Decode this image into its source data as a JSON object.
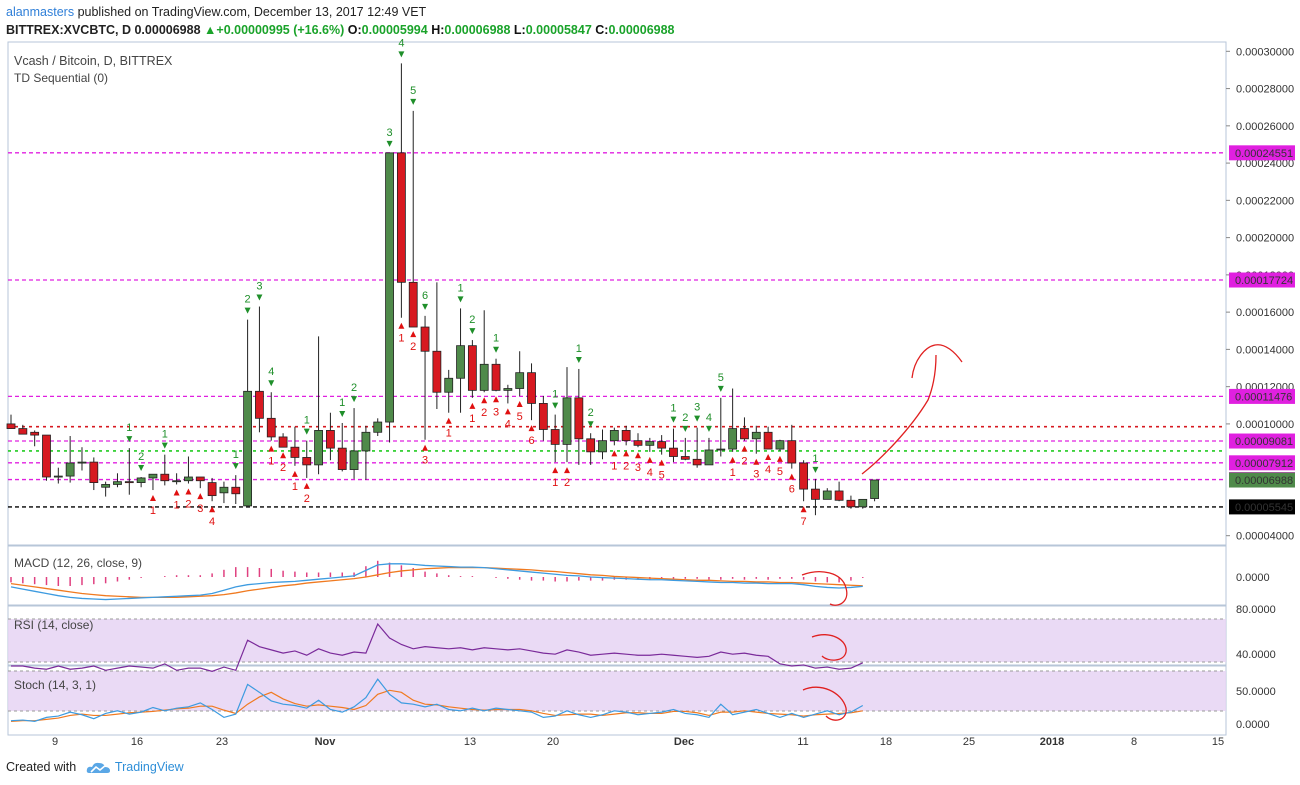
{
  "header": {
    "user": "alanmasters",
    "published": "published on TradingView.com, December 13, 2017 12:49 VET"
  },
  "ohlc_line": {
    "symbol": "BITTREX:XVCBTC, D",
    "price": "0.00006988",
    "change_arrow": "▲",
    "change": "+0.00000995 (+16.6%)",
    "o_label": "O:",
    "o": "0.00005994",
    "h_label": "H:",
    "h": "0.00006988",
    "l_label": "L:",
    "l": "0.00005847",
    "c_label": "C:",
    "c": "0.00006988"
  },
  "legend": {
    "title": "Vcash / Bitcoin, D, BITTREX",
    "td": "TD Sequential (0)",
    "macd": "MACD (12, 26, close, 9)",
    "rsi": "RSI (14, close)",
    "stoch": "Stoch (14, 3, 1)"
  },
  "footer": {
    "created_with": "Created with",
    "brand": "TradingView"
  },
  "colors": {
    "up": "#4f8a4a",
    "down": "#d71920",
    "grid": "#dfe8f3",
    "magenta": "#e020e0",
    "green_dash": "#22cc22",
    "red_dash": "#d71920",
    "td_green": "#1f8f2a",
    "td_red": "#e01010",
    "macd_blue": "#3d9be0",
    "macd_orange": "#f07a20",
    "rsi_line": "#7a2a9a",
    "stoch_blue": "#3d9be0",
    "stoch_orange": "#f07a20",
    "annot": "#e02020",
    "panel_fill": "#e6d4f3"
  },
  "chart_data": {
    "type": "candlestick",
    "title": "Vcash / Bitcoin, D, BITTREX",
    "y_axis": {
      "ticks": [
        "0.00030000",
        "0.00028000",
        "0.00026000",
        "0.00024000",
        "0.00022000",
        "0.00020000",
        "0.00018000",
        "0.00016000",
        "0.00014000",
        "0.00012000",
        "0.00010000",
        "0.00004000"
      ],
      "ylim": [
        3.5e-05,
        0.000305
      ]
    },
    "x_axis": {
      "ticks": [
        "9",
        "16",
        "23",
        "Nov",
        "13",
        "20",
        "Dec",
        "11",
        "18",
        "25",
        "2018",
        "8",
        "15"
      ]
    },
    "price_labels": [
      {
        "value": 0.00024551,
        "text": "0.00024551",
        "color": "#e020e0"
      },
      {
        "value": 0.00017724,
        "text": "0.00017724",
        "color": "#e020e0"
      },
      {
        "value": 0.00011476,
        "text": "0.00011476",
        "color": "#e020e0"
      },
      {
        "value": 9.081e-05,
        "text": "0.00009081",
        "color": "#e020e0"
      },
      {
        "value": 7.912e-05,
        "text": "0.00007912",
        "color": "#e020e0"
      },
      {
        "value": 7.013e-05,
        "text": "0.00007013",
        "color": "#e020e0"
      },
      {
        "value": 6.988e-05,
        "text": "0.00006988",
        "color": "#4f8a4a"
      },
      {
        "value": 5.545e-05,
        "text": "0.00005545",
        "color": "#000000"
      }
    ],
    "h_lines": [
      {
        "value": 0.00024551,
        "style": "magenta"
      },
      {
        "value": 0.00017724,
        "style": "magenta"
      },
      {
        "value": 0.00011476,
        "style": "magenta"
      },
      {
        "value": 9.081e-05,
        "style": "magenta"
      },
      {
        "value": 7.912e-05,
        "style": "magenta"
      },
      {
        "value": 7.013e-05,
        "style": "magenta"
      },
      {
        "value": 9.85e-05,
        "style": "red_dash"
      },
      {
        "value": 8.55e-05,
        "style": "green_dash"
      },
      {
        "value": 5.545e-05,
        "style": "black_dash"
      }
    ],
    "candles": [
      {
        "o": 0.0001,
        "h": 0.000105,
        "l": 9.75e-05,
        "c": 9.75e-05
      },
      {
        "o": 9.75e-05,
        "h": 9.95e-05,
        "l": 9.55e-05,
        "c": 9.45e-05
      },
      {
        "o": 9.55e-05,
        "h": 9.65e-05,
        "l": 8.8e-05,
        "c": 9.4e-05
      },
      {
        "o": 9.4e-05,
        "h": 9.4e-05,
        "l": 6.95e-05,
        "c": 7.15e-05
      },
      {
        "o": 7.15e-05,
        "h": 7.65e-05,
        "l": 6.8e-05,
        "c": 7.2e-05
      },
      {
        "o": 7.2e-05,
        "h": 9.35e-05,
        "l": 6.85e-05,
        "c": 7.9e-05
      },
      {
        "o": 7.9e-05,
        "h": 8.75e-05,
        "l": 7.5e-05,
        "c": 7.95e-05
      },
      {
        "o": 7.95e-05,
        "h": 8.2e-05,
        "l": 6.45e-05,
        "c": 6.85e-05
      },
      {
        "o": 6.6e-05,
        "h": 6.9e-05,
        "l": 6.1e-05,
        "c": 6.75e-05
      },
      {
        "o": 6.75e-05,
        "h": 7.35e-05,
        "l": 6.6e-05,
        "c": 6.9e-05
      },
      {
        "o": 6.9e-05,
        "h": 8.7e-05,
        "l": 6.2e-05,
        "c": 6.85e-05
      },
      {
        "o": 6.85e-05,
        "h": 7.15e-05,
        "l": 6.6e-05,
        "c": 7.1e-05
      },
      {
        "o": 7.1e-05,
        "h": 7.25e-05,
        "l": 6.45e-05,
        "c": 7.3e-05
      },
      {
        "o": 7.3e-05,
        "h": 8.35e-05,
        "l": 6.7e-05,
        "c": 6.95e-05
      },
      {
        "o": 6.95e-05,
        "h": 7.35e-05,
        "l": 6.75e-05,
        "c": 6.95e-05
      },
      {
        "o": 6.95e-05,
        "h": 8.25e-05,
        "l": 6.8e-05,
        "c": 7.15e-05
      },
      {
        "o": 7.15e-05,
        "h": 7.15e-05,
        "l": 6.55e-05,
        "c": 6.95e-05
      },
      {
        "o": 6.85e-05,
        "h": 7.1e-05,
        "l": 5.85e-05,
        "c": 6.15e-05
      },
      {
        "o": 6.3e-05,
        "h": 6.9e-05,
        "l": 5.75e-05,
        "c": 6.6e-05
      },
      {
        "o": 6.6e-05,
        "h": 7.25e-05,
        "l": 5.7e-05,
        "c": 6.25e-05
      },
      {
        "o": 5.6e-05,
        "h": 0.000156,
        "l": 5.65e-05,
        "c": 0.0001175
      },
      {
        "o": 0.0001175,
        "h": 0.000163,
        "l": 9.55e-05,
        "c": 0.000103
      },
      {
        "o": 0.000103,
        "h": 0.000117,
        "l": 9.1e-05,
        "c": 9.3e-05
      },
      {
        "o": 9.3e-05,
        "h": 9.5e-05,
        "l": 8.75e-05,
        "c": 8.75e-05
      },
      {
        "o": 8.75e-05,
        "h": 9.85e-05,
        "l": 7.75e-05,
        "c": 8.2e-05
      },
      {
        "o": 8.2e-05,
        "h": 9.1e-05,
        "l": 7.1e-05,
        "c": 7.8e-05
      },
      {
        "o": 7.8e-05,
        "h": 0.000147,
        "l": 7.3e-05,
        "c": 9.65e-05
      },
      {
        "o": 9.65e-05,
        "h": 0.000106,
        "l": 8.05e-05,
        "c": 8.7e-05
      },
      {
        "o": 8.7e-05,
        "h": 0.0001005,
        "l": 7.45e-05,
        "c": 7.55e-05
      },
      {
        "o": 7.55e-05,
        "h": 0.0001085,
        "l": 7.05e-05,
        "c": 8.55e-05
      },
      {
        "o": 8.55e-05,
        "h": 9.9e-05,
        "l": 7e-05,
        "c": 9.55e-05
      },
      {
        "o": 9.55e-05,
        "h": 0.000103,
        "l": 9.35e-05,
        "c": 0.000101
      },
      {
        "o": 0.000101,
        "h": 0.0002455,
        "l": 9e-05,
        "c": 0.0002455
      },
      {
        "o": 0.0002455,
        "h": 0.0002935,
        "l": 0.000157,
        "c": 0.000176
      },
      {
        "o": 0.000176,
        "h": 0.000268,
        "l": 0.0001525,
        "c": 0.000152
      },
      {
        "o": 0.000152,
        "h": 0.000158,
        "l": 9.15e-05,
        "c": 0.000139
      },
      {
        "o": 0.000139,
        "h": 0.000176,
        "l": 0.000108,
        "c": 0.000117
      },
      {
        "o": 0.000117,
        "h": 0.000129,
        "l": 0.000106,
        "c": 0.0001245
      },
      {
        "o": 0.0001245,
        "h": 0.000162,
        "l": 0.000106,
        "c": 0.000142
      },
      {
        "o": 0.000142,
        "h": 0.000145,
        "l": 0.000114,
        "c": 0.000118
      },
      {
        "o": 0.000118,
        "h": 0.000161,
        "l": 0.000117,
        "c": 0.000132
      },
      {
        "o": 0.000132,
        "h": 0.000135,
        "l": 0.0001175,
        "c": 0.000118
      },
      {
        "o": 0.000118,
        "h": 0.000121,
        "l": 0.000111,
        "c": 0.000119
      },
      {
        "o": 0.000119,
        "h": 0.000139,
        "l": 0.000115,
        "c": 0.0001275
      },
      {
        "o": 0.0001275,
        "h": 0.0001325,
        "l": 0.000102,
        "c": 0.000111
      },
      {
        "o": 0.000111,
        "h": 0.000115,
        "l": 9.1e-05,
        "c": 9.7e-05
      },
      {
        "o": 9.7e-05,
        "h": 0.000105,
        "l": 7.95e-05,
        "c": 8.9e-05
      },
      {
        "o": 8.9e-05,
        "h": 0.0001305,
        "l": 7.95e-05,
        "c": 0.000114
      },
      {
        "o": 0.000114,
        "h": 0.0001295,
        "l": 7.8e-05,
        "c": 9.2e-05
      },
      {
        "o": 9.2e-05,
        "h": 9.5e-05,
        "l": 7.8e-05,
        "c": 8.5e-05
      },
      {
        "o": 8.5e-05,
        "h": 9.7e-05,
        "l": 8.1e-05,
        "c": 9.1e-05
      },
      {
        "o": 9.1e-05,
        "h": 9.8e-05,
        "l": 8.85e-05,
        "c": 9.65e-05
      },
      {
        "o": 9.65e-05,
        "h": 9.9e-05,
        "l": 8.85e-05,
        "c": 9.1e-05
      },
      {
        "o": 9.1e-05,
        "h": 9.5e-05,
        "l": 8.75e-05,
        "c": 8.85e-05
      },
      {
        "o": 8.85e-05,
        "h": 9.25e-05,
        "l": 8.5e-05,
        "c": 9.05e-05
      },
      {
        "o": 9.05e-05,
        "h": 9.4e-05,
        "l": 8.35e-05,
        "c": 8.7e-05
      },
      {
        "o": 8.7e-05,
        "h": 9.75e-05,
        "l": 7.95e-05,
        "c": 8.25e-05
      },
      {
        "o": 8.25e-05,
        "h": 9.25e-05,
        "l": 8.05e-05,
        "c": 8.1e-05
      },
      {
        "o": 8.1e-05,
        "h": 9.8e-05,
        "l": 7.65e-05,
        "c": 7.8e-05
      },
      {
        "o": 7.8e-05,
        "h": 9.25e-05,
        "l": 7.85e-05,
        "c": 8.6e-05
      },
      {
        "o": 8.6e-05,
        "h": 0.000114,
        "l": 8.25e-05,
        "c": 8.65e-05
      },
      {
        "o": 8.65e-05,
        "h": 0.000119,
        "l": 8.5e-05,
        "c": 9.75e-05
      },
      {
        "o": 9.75e-05,
        "h": 0.0001035,
        "l": 9.1e-05,
        "c": 9.2e-05
      },
      {
        "o": 9.2e-05,
        "h": 9.9e-05,
        "l": 8.4e-05,
        "c": 9.55e-05
      },
      {
        "o": 9.55e-05,
        "h": 9.85e-05,
        "l": 8.65e-05,
        "c": 8.65e-05
      },
      {
        "o": 8.65e-05,
        "h": 9.15e-05,
        "l": 8.55e-05,
        "c": 9.1e-05
      },
      {
        "o": 9.1e-05,
        "h": 9.95e-05,
        "l": 7.6e-05,
        "c": 7.9e-05
      },
      {
        "o": 7.9e-05,
        "h": 8.05e-05,
        "l": 5.85e-05,
        "c": 6.5e-05
      },
      {
        "o": 6.5e-05,
        "h": 7.05e-05,
        "l": 5.1e-05,
        "c": 5.95e-05
      },
      {
        "o": 5.95e-05,
        "h": 6.55e-05,
        "l": 5.95e-05,
        "c": 6.4e-05
      },
      {
        "o": 6.4e-05,
        "h": 6.9e-05,
        "l": 5.85e-05,
        "c": 5.9e-05
      },
      {
        "o": 5.9e-05,
        "h": 6.15e-05,
        "l": 5.45e-05,
        "c": 5.55e-05
      },
      {
        "o": 5.55e-05,
        "h": 5.75e-05,
        "l": 5.45e-05,
        "c": 5.95e-05
      },
      {
        "o": 5.994e-05,
        "h": 6.988e-05,
        "l": 5.847e-05,
        "c": 6.988e-05
      }
    ],
    "td_green": [
      {
        "i": 10,
        "n": "1"
      },
      {
        "i": 11,
        "n": "2"
      },
      {
        "i": 13,
        "n": "1"
      },
      {
        "i": 19,
        "n": "1"
      },
      {
        "i": 20,
        "n": "2"
      },
      {
        "i": 21,
        "n": "3"
      },
      {
        "i": 22,
        "n": "4"
      },
      {
        "i": 25,
        "n": "1"
      },
      {
        "i": 28,
        "n": "1"
      },
      {
        "i": 29,
        "n": "2"
      },
      {
        "i": 32,
        "n": "3"
      },
      {
        "i": 33,
        "n": "4"
      },
      {
        "i": 34,
        "n": "5"
      },
      {
        "i": 35,
        "n": "6"
      },
      {
        "i": 38,
        "n": "1"
      },
      {
        "i": 39,
        "n": "2"
      },
      {
        "i": 41,
        "n": "1"
      },
      {
        "i": 46,
        "n": "1"
      },
      {
        "i": 48,
        "n": "1"
      },
      {
        "i": 49,
        "n": "2"
      },
      {
        "i": 56,
        "n": "1"
      },
      {
        "i": 57,
        "n": "2"
      },
      {
        "i": 58,
        "n": "3"
      },
      {
        "i": 59,
        "n": "4"
      },
      {
        "i": 60,
        "n": "5"
      },
      {
        "i": 68,
        "n": "1"
      }
    ],
    "td_red": [
      {
        "i": 12,
        "n": "1"
      },
      {
        "i": 14,
        "n": "1"
      },
      {
        "i": 15,
        "n": "2"
      },
      {
        "i": 16,
        "n": "3"
      },
      {
        "i": 17,
        "n": "4"
      },
      {
        "i": 22,
        "n": "1"
      },
      {
        "i": 23,
        "n": "2"
      },
      {
        "i": 24,
        "n": "1"
      },
      {
        "i": 25,
        "n": "2"
      },
      {
        "i": 33,
        "n": "1"
      },
      {
        "i": 34,
        "n": "2"
      },
      {
        "i": 35,
        "n": "3"
      },
      {
        "i": 37,
        "n": "1"
      },
      {
        "i": 39,
        "n": "1"
      },
      {
        "i": 40,
        "n": "2"
      },
      {
        "i": 41,
        "n": "3"
      },
      {
        "i": 42,
        "n": "4"
      },
      {
        "i": 43,
        "n": "5"
      },
      {
        "i": 44,
        "n": "6"
      },
      {
        "i": 46,
        "n": "1"
      },
      {
        "i": 47,
        "n": "2"
      },
      {
        "i": 51,
        "n": "1"
      },
      {
        "i": 52,
        "n": "2"
      },
      {
        "i": 53,
        "n": "3"
      },
      {
        "i": 54,
        "n": "4"
      },
      {
        "i": 55,
        "n": "5"
      },
      {
        "i": 61,
        "n": "1"
      },
      {
        "i": 62,
        "n": "2"
      },
      {
        "i": 63,
        "n": "3"
      },
      {
        "i": 64,
        "n": "4"
      },
      {
        "i": 65,
        "n": "5"
      },
      {
        "i": 66,
        "n": "6"
      },
      {
        "i": 67,
        "n": "7"
      }
    ],
    "macd": {
      "y_ticks": [
        "0.0000"
      ],
      "macd_line": [
        -18,
        -22,
        -26,
        -30,
        -34,
        -37,
        -39,
        -40,
        -41,
        -40,
        -39,
        -38,
        -37,
        -36,
        -35,
        -34,
        -33,
        -30,
        -24,
        -18,
        -14,
        -12,
        -10,
        -9,
        -8,
        -6,
        -4,
        -2,
        0,
        2,
        12,
        22,
        24,
        24,
        23,
        21,
        20,
        19,
        18,
        18,
        17,
        15,
        13,
        11,
        9,
        7,
        5,
        3,
        2,
        0,
        -1,
        -2,
        -3,
        -4,
        -5,
        -5,
        -6,
        -7,
        -8,
        -9,
        -10,
        -10,
        -11,
        -11,
        -12,
        -12,
        -12,
        -14,
        -17,
        -19,
        -20,
        -19,
        -17
      ],
      "signal_line": [
        -12,
        -15,
        -18,
        -21,
        -24,
        -27,
        -30,
        -32,
        -34,
        -35,
        -36,
        -37,
        -37,
        -37,
        -37,
        -36,
        -35,
        -34,
        -32,
        -29,
        -25,
        -22,
        -19,
        -16,
        -14,
        -11,
        -9,
        -7,
        -5,
        -3,
        0,
        4,
        8,
        11,
        13,
        15,
        16,
        17,
        17,
        17,
        17,
        16,
        15,
        14,
        13,
        11,
        10,
        8,
        6,
        4,
        3,
        1,
        0,
        -1,
        -2,
        -3,
        -4,
        -5,
        -6,
        -6,
        -7,
        -8,
        -8,
        -9,
        -9,
        -10,
        -10,
        -11,
        -12,
        -13,
        -14,
        -15,
        -16
      ]
    },
    "rsi": {
      "y_ticks": [
        "80.0000",
        "40.0000"
      ],
      "values": [
        40,
        40,
        38,
        37,
        40,
        37,
        38,
        40,
        36,
        38,
        40,
        39,
        38,
        42,
        36,
        38,
        38,
        35,
        39,
        36,
        64,
        58,
        55,
        52,
        54,
        50,
        56,
        52,
        50,
        53,
        52,
        79,
        66,
        60,
        56,
        58,
        57,
        56,
        57,
        55,
        57,
        56,
        55,
        56,
        54,
        52,
        51,
        55,
        53,
        50,
        51,
        52,
        51,
        50,
        50,
        51,
        50,
        49,
        48,
        49,
        53,
        51,
        52,
        50,
        49,
        42,
        40,
        41,
        38,
        39,
        37,
        38,
        43
      ]
    },
    "stoch": {
      "y_ticks": [
        "50.0000",
        "0.0000"
      ],
      "k": [
        5,
        6,
        4,
        10,
        12,
        18,
        14,
        8,
        16,
        20,
        15,
        18,
        25,
        20,
        24,
        26,
        32,
        22,
        10,
        15,
        60,
        48,
        35,
        30,
        28,
        24,
        36,
        22,
        18,
        26,
        40,
        68,
        45,
        32,
        30,
        26,
        30,
        22,
        20,
        24,
        20,
        24,
        22,
        20,
        18,
        10,
        12,
        20,
        14,
        10,
        14,
        20,
        18,
        14,
        16,
        18,
        22,
        16,
        14,
        10,
        30,
        14,
        18,
        22,
        16,
        10,
        16,
        10,
        15,
        20,
        14,
        18,
        28
      ],
      "d": [
        4,
        5,
        5,
        7,
        9,
        13,
        15,
        13,
        13,
        15,
        17,
        18,
        19,
        21,
        23,
        24,
        27,
        27,
        21,
        16,
        30,
        41,
        48,
        38,
        31,
        27,
        29,
        27,
        25,
        22,
        28,
        45,
        51,
        48,
        36,
        30,
        29,
        26,
        24,
        22,
        21,
        22,
        22,
        22,
        20,
        16,
        13,
        14,
        15,
        15,
        13,
        15,
        17,
        17,
        16,
        16,
        19,
        19,
        17,
        13,
        18,
        18,
        20,
        18,
        16,
        15,
        14,
        12,
        14,
        15,
        16,
        17,
        20
      ]
    }
  }
}
